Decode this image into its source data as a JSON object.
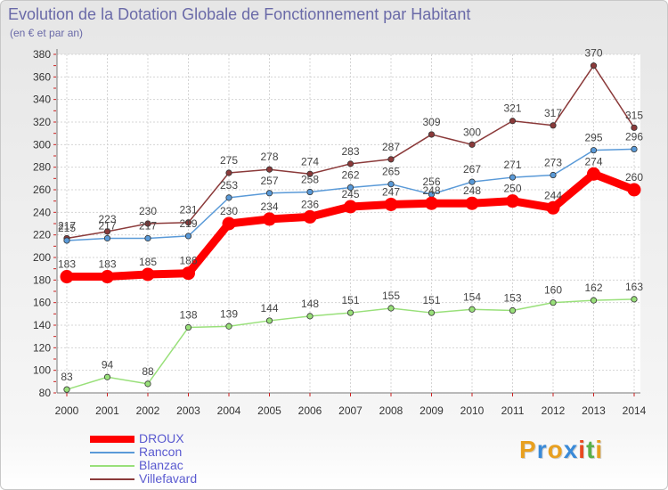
{
  "header": {
    "title": "Evolution de la Dotation Globale de Fonctionnement par Habitant",
    "subtitle": "(en € et par an)"
  },
  "brand": {
    "letters": [
      "P",
      "r",
      "o",
      "x",
      "i",
      "t",
      "i"
    ],
    "colors": [
      "#e8a020",
      "#3a8ad8",
      "#e8a020",
      "#3a8ad8",
      "#e84a20",
      "#5ab04a",
      "#e8a020"
    ]
  },
  "chart_data": {
    "type": "line",
    "x": [
      "2000",
      "2001",
      "2002",
      "2003",
      "2004",
      "2005",
      "2006",
      "2007",
      "2008",
      "2009",
      "2010",
      "2011",
      "2012",
      "2013",
      "2014"
    ],
    "ylim": [
      80,
      380
    ],
    "yticks": [
      80,
      100,
      120,
      140,
      160,
      180,
      200,
      220,
      240,
      260,
      280,
      300,
      320,
      340,
      360,
      380
    ],
    "grid": true,
    "legend_position": "bottom-left",
    "series": [
      {
        "name": "Villefavard",
        "color": "#8b3a3a",
        "values": [
          217,
          223,
          230,
          231,
          275,
          278,
          274,
          283,
          287,
          309,
          300,
          321,
          317,
          370,
          315
        ]
      },
      {
        "name": "Rancon",
        "color": "#5a9ad8",
        "values": [
          215,
          217,
          217,
          219,
          253,
          257,
          258,
          262,
          265,
          256,
          267,
          271,
          273,
          295,
          296
        ]
      },
      {
        "name": "Blanzac",
        "color": "#99e07a",
        "values": [
          83,
          94,
          88,
          138,
          139,
          144,
          148,
          151,
          155,
          151,
          154,
          153,
          160,
          162,
          163
        ]
      },
      {
        "name": "DROUX",
        "color": "#ff0000",
        "values": [
          183,
          183,
          185,
          186,
          230,
          234,
          236,
          245,
          247,
          248,
          248,
          250,
          244,
          274,
          260
        ]
      }
    ]
  },
  "legend": {
    "items": [
      {
        "name": "DROUX",
        "color": "#ff0000"
      },
      {
        "name": "Rancon",
        "color": "#5a9ad8"
      },
      {
        "name": "Blanzac",
        "color": "#99e07a"
      },
      {
        "name": "Villefavard",
        "color": "#8b3a3a"
      }
    ]
  }
}
